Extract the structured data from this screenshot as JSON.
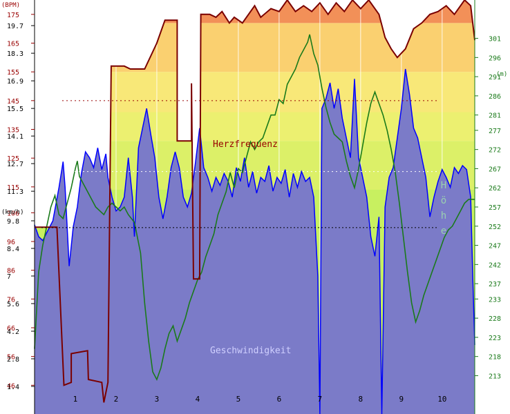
{
  "chart_data": {
    "type": "area",
    "units": {
      "hr": "(BPM)",
      "speed": "(km/h)",
      "alt": "(m)"
    },
    "labels": {
      "hr": "Herzfrequenz",
      "speed": "Geschwindigkeit",
      "alt": "Höhe"
    },
    "x": {
      "ticks": [
        "1",
        "2",
        "3",
        "4",
        "5",
        "6",
        "7",
        "8",
        "9",
        "10"
      ],
      "max": 10.8
    },
    "hr_axis": {
      "ticks": [
        "175",
        "165",
        "155",
        "145",
        "135",
        "125",
        "115",
        "106",
        "96",
        "86",
        "76",
        "66",
        "56",
        "46"
      ],
      "min": 36,
      "max": 180,
      "avg": 145,
      "zones": [
        {
          "from": 36,
          "to": 114,
          "color": "#c8f060"
        },
        {
          "from": 114,
          "to": 131,
          "color": "#dcf068"
        },
        {
          "from": 131,
          "to": 141,
          "color": "#ecf070"
        },
        {
          "from": 141,
          "to": 155,
          "color": "#f8e878"
        },
        {
          "from": 155,
          "to": 172,
          "color": "#fad070"
        },
        {
          "from": 172,
          "to": 180,
          "color": "#f29058"
        }
      ],
      "series": [
        [
          0,
          101
        ],
        [
          0.55,
          101
        ],
        [
          0.72,
          46
        ],
        [
          0.9,
          47
        ],
        [
          0.9,
          57
        ],
        [
          1.3,
          58
        ],
        [
          1.32,
          48
        ],
        [
          1.65,
          47
        ],
        [
          1.7,
          40
        ],
        [
          1.8,
          47
        ],
        [
          1.88,
          157
        ],
        [
          2.2,
          157
        ],
        [
          2.35,
          156
        ],
        [
          2.7,
          156
        ],
        [
          3.0,
          165
        ],
        [
          3.2,
          173
        ],
        [
          3.5,
          173
        ],
        [
          3.5,
          131
        ],
        [
          3.85,
          131
        ],
        [
          3.85,
          151
        ],
        [
          3.9,
          83
        ],
        [
          4.05,
          83
        ],
        [
          4.08,
          175
        ],
        [
          4.3,
          175
        ],
        [
          4.45,
          174
        ],
        [
          4.6,
          176
        ],
        [
          4.78,
          172
        ],
        [
          4.9,
          174
        ],
        [
          5.1,
          172
        ],
        [
          5.4,
          178
        ],
        [
          5.55,
          174
        ],
        [
          5.8,
          177
        ],
        [
          6.0,
          176
        ],
        [
          6.2,
          180
        ],
        [
          6.4,
          176
        ],
        [
          6.6,
          178
        ],
        [
          6.8,
          176
        ],
        [
          7.0,
          179
        ],
        [
          7.2,
          175
        ],
        [
          7.4,
          179
        ],
        [
          7.6,
          176
        ],
        [
          7.8,
          180
        ],
        [
          8.0,
          177
        ],
        [
          8.2,
          180
        ],
        [
          8.45,
          175
        ],
        [
          8.6,
          167
        ],
        [
          8.75,
          163
        ],
        [
          8.9,
          160
        ],
        [
          9.1,
          163
        ],
        [
          9.3,
          170
        ],
        [
          9.5,
          172
        ],
        [
          9.7,
          175
        ],
        [
          9.9,
          176
        ],
        [
          10.1,
          178
        ],
        [
          10.3,
          175
        ],
        [
          10.55,
          180
        ],
        [
          10.7,
          178
        ],
        [
          10.8,
          166
        ]
      ]
    },
    "speed_axis": {
      "ticks": [
        "19.7",
        "18.3",
        "16.9",
        "15.5",
        "14.1",
        "12.7",
        "11.3",
        "9.8",
        "8.4",
        "7",
        "5.6",
        "4.2",
        "2.8",
        "1.4"
      ],
      "min": 0,
      "max": 21,
      "avg": 12.3,
      "fill_color": "#7b7bc8",
      "line_color": "#0000ff",
      "series": [
        [
          0,
          9.6
        ],
        [
          0.1,
          9.0
        ],
        [
          0.2,
          8.8
        ],
        [
          0.3,
          9.2
        ],
        [
          0.45,
          9.8
        ],
        [
          0.6,
          11.5
        ],
        [
          0.7,
          12.8
        ],
        [
          0.75,
          11.5
        ],
        [
          0.85,
          7.5
        ],
        [
          0.95,
          9.5
        ],
        [
          1.05,
          10.5
        ],
        [
          1.15,
          12.2
        ],
        [
          1.25,
          13.3
        ],
        [
          1.35,
          13.0
        ],
        [
          1.45,
          12.5
        ],
        [
          1.55,
          13.5
        ],
        [
          1.65,
          12.4
        ],
        [
          1.75,
          13.2
        ],
        [
          1.8,
          12.0
        ],
        [
          1.9,
          11.0
        ],
        [
          2.0,
          10.3
        ],
        [
          2.1,
          10.5
        ],
        [
          2.2,
          11.0
        ],
        [
          2.3,
          13.0
        ],
        [
          2.4,
          11.0
        ],
        [
          2.45,
          9.0
        ],
        [
          2.55,
          13.5
        ],
        [
          2.65,
          14.5
        ],
        [
          2.75,
          15.5
        ],
        [
          2.85,
          14.2
        ],
        [
          2.95,
          13.0
        ],
        [
          3.05,
          11.0
        ],
        [
          3.15,
          9.9
        ],
        [
          3.25,
          11.0
        ],
        [
          3.35,
          12.5
        ],
        [
          3.45,
          13.3
        ],
        [
          3.55,
          12.5
        ],
        [
          3.65,
          11.0
        ],
        [
          3.75,
          10.5
        ],
        [
          3.85,
          11.2
        ],
        [
          3.95,
          12.8
        ],
        [
          4.05,
          14.5
        ],
        [
          4.15,
          12.5
        ],
        [
          4.25,
          12.0
        ],
        [
          4.35,
          11.3
        ],
        [
          4.45,
          12.0
        ],
        [
          4.55,
          11.6
        ],
        [
          4.65,
          12.2
        ],
        [
          4.75,
          11.8
        ],
        [
          4.85,
          11.0
        ],
        [
          4.95,
          12.5
        ],
        [
          5.05,
          11.8
        ],
        [
          5.15,
          13.0
        ],
        [
          5.25,
          11.5
        ],
        [
          5.35,
          12.3
        ],
        [
          5.45,
          11.2
        ],
        [
          5.55,
          12.0
        ],
        [
          5.65,
          11.8
        ],
        [
          5.75,
          12.6
        ],
        [
          5.85,
          11.3
        ],
        [
          5.95,
          12.0
        ],
        [
          6.05,
          11.7
        ],
        [
          6.15,
          12.4
        ],
        [
          6.25,
          11.0
        ],
        [
          6.35,
          12.2
        ],
        [
          6.45,
          11.5
        ],
        [
          6.55,
          12.3
        ],
        [
          6.65,
          11.8
        ],
        [
          6.75,
          12.0
        ],
        [
          6.85,
          11.0
        ],
        [
          6.95,
          7.0
        ],
        [
          7.0,
          0
        ],
        [
          7.05,
          15.5
        ],
        [
          7.15,
          16.0
        ],
        [
          7.25,
          16.8
        ],
        [
          7.35,
          15.5
        ],
        [
          7.45,
          16.5
        ],
        [
          7.55,
          15.0
        ],
        [
          7.65,
          14.0
        ],
        [
          7.75,
          13.0
        ],
        [
          7.85,
          17.0
        ],
        [
          7.95,
          13.0
        ],
        [
          8.05,
          12.0
        ],
        [
          8.15,
          11.0
        ],
        [
          8.25,
          9.0
        ],
        [
          8.35,
          8.0
        ],
        [
          8.45,
          10.0
        ],
        [
          8.52,
          0
        ],
        [
          8.6,
          10.5
        ],
        [
          8.7,
          12.0
        ],
        [
          8.8,
          12.5
        ],
        [
          8.9,
          14.0
        ],
        [
          9.0,
          15.5
        ],
        [
          9.1,
          17.5
        ],
        [
          9.2,
          16.2
        ],
        [
          9.3,
          14.5
        ],
        [
          9.4,
          14.0
        ],
        [
          9.5,
          13.0
        ],
        [
          9.6,
          12.0
        ],
        [
          9.7,
          10.0
        ],
        [
          9.8,
          11.0
        ],
        [
          9.9,
          11.8
        ],
        [
          10.0,
          12.4
        ],
        [
          10.1,
          12.0
        ],
        [
          10.2,
          11.5
        ],
        [
          10.3,
          12.5
        ],
        [
          10.4,
          12.2
        ],
        [
          10.5,
          12.6
        ],
        [
          10.6,
          12.4
        ],
        [
          10.7,
          11.0
        ],
        [
          10.75,
          7.0
        ],
        [
          10.8,
          3.5
        ]
      ]
    },
    "alt_axis": {
      "ticks": [
        "301",
        "296",
        "291",
        "286",
        "281",
        "277",
        "272",
        "267",
        "262",
        "257",
        "252",
        "247",
        "242",
        "237",
        "233",
        "228",
        "223",
        "218",
        "213"
      ],
      "min": 203,
      "max": 311,
      "line_color": "#1a7a1a",
      "series": [
        [
          0,
          220
        ],
        [
          0.1,
          240
        ],
        [
          0.2,
          247
        ],
        [
          0.3,
          252
        ],
        [
          0.4,
          257
        ],
        [
          0.5,
          260
        ],
        [
          0.6,
          255
        ],
        [
          0.7,
          254
        ],
        [
          0.8,
          258
        ],
        [
          0.9,
          262
        ],
        [
          1.0,
          267
        ],
        [
          1.05,
          269
        ],
        [
          1.1,
          265
        ],
        [
          1.2,
          263
        ],
        [
          1.3,
          261
        ],
        [
          1.4,
          259
        ],
        [
          1.5,
          257
        ],
        [
          1.6,
          256
        ],
        [
          1.7,
          255
        ],
        [
          1.8,
          257
        ],
        [
          1.9,
          258
        ],
        [
          2.0,
          257
        ],
        [
          2.1,
          256
        ],
        [
          2.2,
          257
        ],
        [
          2.3,
          255
        ],
        [
          2.45,
          253
        ],
        [
          2.6,
          245
        ],
        [
          2.7,
          232
        ],
        [
          2.8,
          222
        ],
        [
          2.9,
          214
        ],
        [
          3.0,
          212
        ],
        [
          3.1,
          215
        ],
        [
          3.2,
          220
        ],
        [
          3.3,
          224
        ],
        [
          3.4,
          226
        ],
        [
          3.5,
          222
        ],
        [
          3.6,
          225
        ],
        [
          3.7,
          228
        ],
        [
          3.8,
          232
        ],
        [
          3.9,
          235
        ],
        [
          4.0,
          238
        ],
        [
          4.1,
          240
        ],
        [
          4.2,
          244
        ],
        [
          4.3,
          247
        ],
        [
          4.4,
          250
        ],
        [
          4.5,
          255
        ],
        [
          4.6,
          258
        ],
        [
          4.7,
          261
        ],
        [
          4.8,
          266
        ],
        [
          4.9,
          262
        ],
        [
          5.0,
          267
        ],
        [
          5.1,
          266
        ],
        [
          5.2,
          270
        ],
        [
          5.3,
          274
        ],
        [
          5.4,
          272
        ],
        [
          5.5,
          274
        ],
        [
          5.6,
          275
        ],
        [
          5.7,
          278
        ],
        [
          5.8,
          281
        ],
        [
          5.9,
          281
        ],
        [
          6.0,
          285
        ],
        [
          6.1,
          284
        ],
        [
          6.2,
          289
        ],
        [
          6.3,
          291
        ],
        [
          6.4,
          293
        ],
        [
          6.5,
          296
        ],
        [
          6.6,
          298
        ],
        [
          6.7,
          300
        ],
        [
          6.75,
          302
        ],
        [
          6.85,
          297
        ],
        [
          6.95,
          294
        ],
        [
          7.05,
          288
        ],
        [
          7.15,
          283
        ],
        [
          7.25,
          279
        ],
        [
          7.35,
          276
        ],
        [
          7.45,
          275
        ],
        [
          7.55,
          274
        ],
        [
          7.65,
          269
        ],
        [
          7.75,
          265
        ],
        [
          7.85,
          262
        ],
        [
          7.95,
          267
        ],
        [
          8.05,
          273
        ],
        [
          8.15,
          279
        ],
        [
          8.25,
          284
        ],
        [
          8.35,
          287
        ],
        [
          8.45,
          284
        ],
        [
          8.55,
          281
        ],
        [
          8.65,
          277
        ],
        [
          8.75,
          272
        ],
        [
          8.85,
          266
        ],
        [
          8.95,
          258
        ],
        [
          9.05,
          249
        ],
        [
          9.15,
          240
        ],
        [
          9.25,
          232
        ],
        [
          9.35,
          227
        ],
        [
          9.45,
          230
        ],
        [
          9.55,
          234
        ],
        [
          9.65,
          237
        ],
        [
          9.75,
          240
        ],
        [
          9.85,
          243
        ],
        [
          9.95,
          246
        ],
        [
          10.05,
          249
        ],
        [
          10.15,
          251
        ],
        [
          10.25,
          252
        ],
        [
          10.35,
          254
        ],
        [
          10.45,
          256
        ],
        [
          10.55,
          258
        ],
        [
          10.65,
          259
        ],
        [
          10.8,
          259
        ]
      ]
    }
  }
}
